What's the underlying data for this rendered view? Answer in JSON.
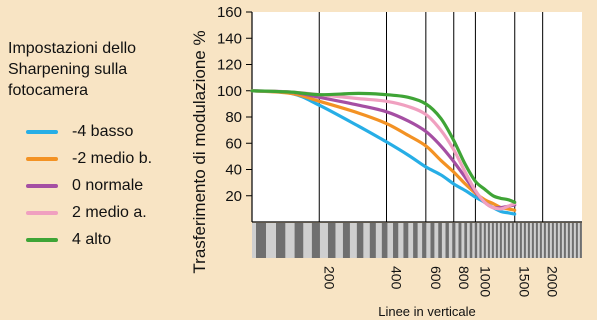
{
  "legend": {
    "title": "Impostazioni dello Sharpening sulla fotocamera"
  },
  "colors": {
    "background": "#f8e4c4",
    "plot_background": "#ffffff",
    "target_dark": "#6f6f6f",
    "target_light": "#cfcfcf"
  },
  "chart_data": {
    "type": "line",
    "title": "",
    "xlabel": "Linee in verticale",
    "ylabel": "Trasferimento di modulazione %",
    "ylim": [
      0,
      160
    ],
    "yticks": [
      20,
      40,
      60,
      80,
      100,
      120,
      140,
      160
    ],
    "xticks": [
      200,
      400,
      600,
      800,
      1000,
      1500,
      2000
    ],
    "x_scale": "logarithmic",
    "grid": "vertical lines at x ticks",
    "legend_position": "left of plot",
    "series": [
      {
        "name": "-4 basso",
        "color": "#27aee6",
        "x": [
          100,
          150,
          200,
          300,
          400,
          500,
          600,
          700,
          800,
          900,
          1000,
          1100,
          1200,
          1300,
          1400,
          1500
        ],
        "y": [
          100,
          98,
          89,
          73,
          61,
          51,
          42,
          36,
          29,
          24,
          19,
          15,
          11,
          8,
          7,
          6
        ]
      },
      {
        "name": "-2 medio b.",
        "color": "#f39224",
        "x": [
          100,
          150,
          200,
          300,
          400,
          500,
          600,
          700,
          800,
          900,
          1000,
          1100,
          1200,
          1300,
          1400,
          1500
        ],
        "y": [
          100,
          98,
          92,
          83,
          75,
          66,
          58,
          47,
          38,
          29,
          22,
          17,
          14,
          11,
          10,
          9
        ]
      },
      {
        "name": "0 normale",
        "color": "#a54fa3",
        "x": [
          100,
          150,
          200,
          300,
          400,
          500,
          600,
          700,
          800,
          900,
          1000,
          1100,
          1200,
          1300,
          1400,
          1500
        ],
        "y": [
          100,
          99,
          95,
          89,
          84,
          77,
          69,
          58,
          46,
          34,
          23,
          15,
          11,
          11,
          12,
          13
        ]
      },
      {
        "name": "2 medio a.",
        "color": "#f0a0c0",
        "x": [
          100,
          150,
          200,
          300,
          400,
          500,
          600,
          700,
          800,
          900,
          1000,
          1100,
          1200,
          1300,
          1400,
          1500
        ],
        "y": [
          100,
          99,
          97,
          94,
          92,
          88,
          82,
          70,
          55,
          38,
          24,
          15,
          11,
          10,
          12,
          14
        ]
      },
      {
        "name": "4 alto",
        "color": "#3fa436",
        "x": [
          100,
          150,
          200,
          300,
          400,
          500,
          600,
          700,
          800,
          900,
          1000,
          1100,
          1200,
          1300,
          1400,
          1500
        ],
        "y": [
          100,
          99,
          97,
          98,
          97,
          95,
          90,
          79,
          62,
          44,
          31,
          25,
          20,
          18,
          17,
          15
        ]
      }
    ]
  }
}
